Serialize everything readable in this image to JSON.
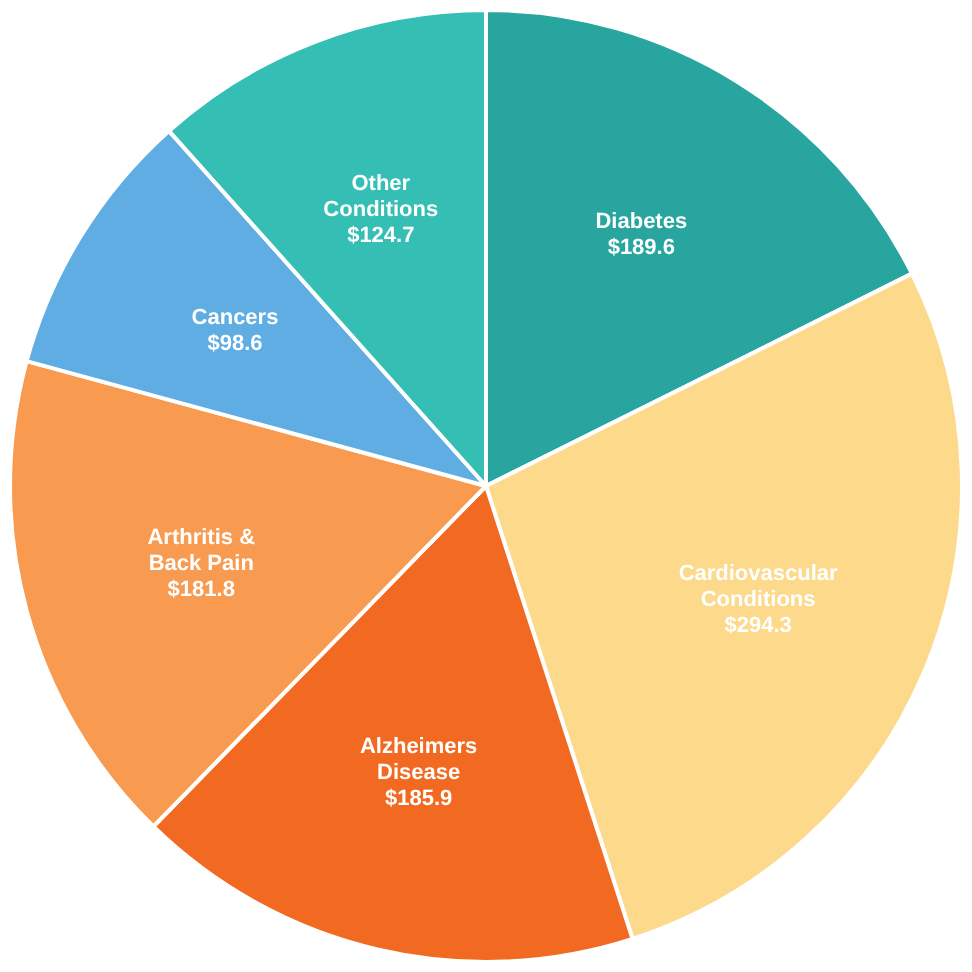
{
  "chart_data": {
    "type": "pie",
    "categories": [
      "Diabetes",
      "Cardiovascular Conditions",
      "Alzheimers Disease",
      "Arthritis & Back Pain",
      "Cancers",
      "Other Conditions"
    ],
    "values": [
      189.6,
      294.3,
      185.9,
      181.8,
      98.6,
      124.7
    ],
    "value_labels": [
      "$189.6",
      "$294.3",
      "$185.9",
      "$181.8",
      "$98.6",
      "$124.7"
    ],
    "colors": [
      "#27a59e",
      "#fdd98c",
      "#f26a22",
      "#f89b50",
      "#5fade2",
      "#35bfb4"
    ],
    "legend": false
  }
}
